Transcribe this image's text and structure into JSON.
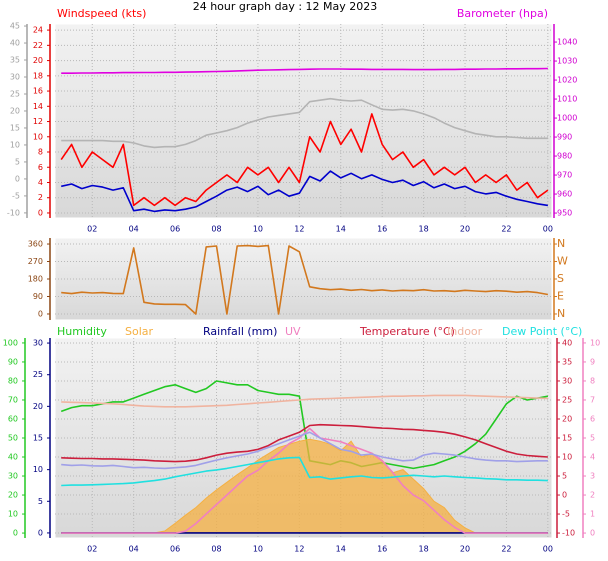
{
  "chart_data": [
    {
      "type": "line",
      "title": "24 hour graph day : 12 May 2023",
      "x": [
        0.5,
        1,
        1.5,
        2,
        2.5,
        3,
        3.5,
        4,
        4.5,
        5,
        5.5,
        6,
        6.5,
        7,
        7.5,
        8,
        8.5,
        9,
        9.5,
        10,
        10.5,
        11,
        11.5,
        12,
        12.5,
        13,
        13.5,
        14,
        14.5,
        15,
        15.5,
        16,
        16.5,
        17,
        17.5,
        18,
        18.5,
        19,
        19.5,
        20,
        20.5,
        21,
        21.5,
        22,
        22.5,
        23,
        23.5,
        24
      ],
      "xlim": [
        0.2,
        24.2
      ],
      "xticks": [
        {
          "value": 2,
          "label": "02"
        },
        {
          "value": 4,
          "label": "04"
        },
        {
          "value": 6,
          "label": "06"
        },
        {
          "value": 8,
          "label": "08"
        },
        10,
        12,
        14,
        16,
        18,
        20,
        22,
        {
          "value": 24,
          "label": "00"
        }
      ],
      "ylim": [
        -0.66,
        24.8
      ],
      "yticks": [
        0,
        2,
        4,
        6,
        8,
        10,
        12,
        14,
        16,
        18,
        20,
        22,
        24
      ],
      "y2lim": [
        947.4,
        1049.5
      ],
      "y2ticks": [
        950,
        960,
        970,
        980,
        990,
        1000,
        1010,
        1020,
        1030,
        1040
      ],
      "y3lim": [
        -11.5,
        45.6
      ],
      "y3ticks": [
        -10,
        -5,
        0,
        5,
        10,
        15,
        20,
        25,
        30,
        35,
        40,
        45
      ],
      "axis_colors": {
        "y": "#e00000",
        "y2": "#d000d0",
        "y3": "#a0a0a0"
      },
      "grid": true,
      "series": [
        {
          "name": "Windspeed (kts)",
          "color": "#ff0000",
          "axis": "y",
          "values": [
            7,
            9,
            6,
            8,
            7,
            6,
            9,
            1,
            2,
            1,
            2,
            1,
            2,
            1.5,
            3,
            4,
            5,
            4,
            6,
            5,
            6,
            4,
            6,
            4,
            10,
            8,
            12,
            9,
            11,
            8,
            13,
            9,
            7,
            8,
            6,
            7,
            5,
            6,
            5,
            6,
            4,
            5,
            4,
            5,
            3,
            4,
            2,
            3
          ]
        },
        {
          "color": "#0000cc",
          "axis": "y",
          "values": [
            3.5,
            3.8,
            3.2,
            3.6,
            3.4,
            3.0,
            3.3,
            0.3,
            0.5,
            0.2,
            0.4,
            0.3,
            0.5,
            0.8,
            1.5,
            2.2,
            3.0,
            3.4,
            2.8,
            3.5,
            2.4,
            3.0,
            2.2,
            2.6,
            4.8,
            4.2,
            5.5,
            4.6,
            5.2,
            4.5,
            5.0,
            4.4,
            4.0,
            4.3,
            3.6,
            4.1,
            3.3,
            3.8,
            3.2,
            3.5,
            2.8,
            2.5,
            2.7,
            2.2,
            1.8,
            1.5,
            1.2,
            1.0
          ]
        },
        {
          "color": "#b4b4b4",
          "axis": "y",
          "values": [
            9.5,
            9.5,
            9.5,
            9.5,
            9.5,
            9.4,
            9.4,
            9.2,
            8.8,
            8.6,
            8.7,
            8.7,
            9.0,
            9.5,
            10.2,
            10.5,
            10.8,
            11.2,
            11.8,
            12.2,
            12.6,
            12.8,
            13.0,
            13.2,
            14.6,
            14.8,
            15.0,
            14.8,
            14.7,
            14.8,
            14.2,
            13.6,
            13.5,
            13.6,
            13.4,
            13.0,
            12.5,
            11.8,
            11.2,
            10.8,
            10.4,
            10.2,
            10.0,
            10.0,
            9.9,
            9.8,
            9.8,
            9.8
          ]
        },
        {
          "name": "Barometer (hpa)",
          "color": "#e000e0",
          "axis": "y2",
          "values": [
            1023.6,
            1023.6,
            1023.7,
            1023.7,
            1023.8,
            1023.8,
            1023.9,
            1023.9,
            1024.0,
            1024.0,
            1024.1,
            1024.1,
            1024.2,
            1024.3,
            1024.4,
            1024.5,
            1024.6,
            1024.8,
            1025.0,
            1025.2,
            1025.3,
            1025.4,
            1025.5,
            1025.6,
            1025.7,
            1025.8,
            1025.8,
            1025.8,
            1025.7,
            1025.7,
            1025.6,
            1025.6,
            1025.6,
            1025.6,
            1025.5,
            1025.5,
            1025.5,
            1025.6,
            1025.6,
            1025.7,
            1025.7,
            1025.8,
            1025.8,
            1025.9,
            1025.9,
            1026.0,
            1026.0,
            1026.1
          ]
        }
      ]
    },
    {
      "type": "line",
      "x": [
        0.5,
        1,
        1.5,
        2,
        2.5,
        3,
        3.5,
        4,
        4.5,
        5,
        5.5,
        6,
        6.5,
        7,
        7.5,
        8,
        8.5,
        9,
        9.5,
        10,
        10.5,
        11,
        11.5,
        12,
        12.5,
        13,
        13.5,
        14,
        14.5,
        15,
        15.5,
        16,
        16.5,
        17,
        17.5,
        18,
        18.5,
        19,
        19.5,
        20,
        20.5,
        21,
        21.5,
        22,
        22.5,
        23,
        23.5,
        24
      ],
      "xlim": [
        0.2,
        24.2
      ],
      "ylim": [
        -31,
        391
      ],
      "yticks": [
        0,
        90,
        180,
        270,
        360
      ],
      "y2lim": [
        -31,
        391
      ],
      "y2ticks": [
        {
          "value": 0,
          "label": "N"
        },
        {
          "value": 90,
          "label": "E"
        },
        {
          "value": 180,
          "label": "S"
        },
        {
          "value": 270,
          "label": "W"
        },
        {
          "value": 360,
          "label": "N"
        }
      ],
      "axis_colors": {
        "y": "#8b4513",
        "y2": "#d2781e"
      },
      "grid": true,
      "series": [
        {
          "color": "#d2781e",
          "axis": "y",
          "values": [
            110,
            105,
            112,
            108,
            110,
            106,
            105,
            340,
            60,
            52,
            50,
            50,
            48,
            0,
            345,
            350,
            0,
            350,
            352,
            348,
            352,
            0,
            350,
            320,
            140,
            130,
            125,
            128,
            122,
            126,
            120,
            124,
            118,
            122,
            120,
            125,
            118,
            120,
            116,
            122,
            118,
            115,
            120,
            117,
            112,
            115,
            110,
            100
          ]
        }
      ]
    },
    {
      "type": "line",
      "x": [
        0.5,
        1,
        1.5,
        2,
        2.5,
        3,
        3.5,
        4,
        4.5,
        5,
        5.5,
        6,
        6.5,
        7,
        7.5,
        8,
        8.5,
        9,
        9.5,
        10,
        10.5,
        11,
        11.5,
        12,
        12.5,
        13,
        13.5,
        14,
        14.5,
        15,
        15.5,
        16,
        16.5,
        17,
        17.5,
        18,
        18.5,
        19,
        19.5,
        20,
        20.5,
        21,
        21.5,
        22,
        22.5,
        23,
        23.5,
        24
      ],
      "xlim": [
        0.2,
        24.2
      ],
      "xticks": [
        {
          "value": 2,
          "label": "02"
        },
        {
          "value": 4,
          "label": "04"
        },
        {
          "value": 6,
          "label": "06"
        },
        {
          "value": 8,
          "label": "08"
        },
        10,
        12,
        14,
        16,
        18,
        20,
        22,
        {
          "value": 24,
          "label": "00"
        }
      ],
      "ylim": [
        -2.6,
        102.6
      ],
      "yticks": [
        0,
        10,
        20,
        30,
        40,
        50,
        60,
        70,
        80,
        90,
        100
      ],
      "y2lim": [
        -11.3,
        41.3
      ],
      "y2ticks": [
        -10,
        -5,
        0,
        5,
        10,
        15,
        20,
        25,
        30,
        35,
        40
      ],
      "y3lim": [
        -0.8,
        30.8
      ],
      "y3ticks": [
        0,
        5,
        10,
        15,
        20,
        25,
        30
      ],
      "y4lim": [
        -0.26,
        10.26
      ],
      "y4ticks": [
        0,
        1,
        2,
        3,
        4,
        5,
        6,
        7,
        8,
        9,
        10
      ],
      "axis_colors": {
        "y": "#22c822",
        "y2": "#cc1e3c",
        "y3": "#000080",
        "y4": "#f080c0"
      },
      "grid": true,
      "series": [
        {
          "name": "Humidity",
          "color": "#22c822",
          "axis": "y",
          "values": [
            64,
            66,
            67,
            67,
            68,
            69,
            69,
            71,
            73,
            75,
            77,
            78,
            76,
            74,
            76,
            80,
            79,
            78,
            78,
            75,
            74,
            73,
            73,
            72,
            38,
            37,
            36,
            38,
            37,
            35,
            36,
            37,
            36,
            35,
            34,
            35,
            36,
            38,
            40,
            43,
            47,
            52,
            60,
            68,
            72,
            70,
            71,
            72
          ]
        },
        {
          "name": "Solar",
          "color": "#f5b042",
          "axis": "y3",
          "fill": true,
          "values": [
            0,
            0,
            0,
            0,
            0,
            0,
            0,
            0,
            0,
            0,
            0.3,
            1.5,
            2.8,
            4.0,
            5.5,
            6.8,
            8.0,
            9.2,
            10.3,
            11.5,
            12.5,
            13.5,
            14.0,
            14.5,
            14.8,
            14.5,
            14.0,
            13.0,
            14.5,
            12.0,
            12.5,
            11.5,
            9.5,
            10.0,
            8.5,
            7.0,
            5.0,
            4.0,
            2.0,
            0.8,
            0,
            0,
            0,
            0,
            0,
            0,
            0,
            0
          ]
        },
        {
          "name": "Rainfall (mm)",
          "color": "#000080",
          "axis": "y3",
          "values": [
            0,
            0,
            0,
            0,
            0,
            0,
            0,
            0,
            0,
            0,
            0,
            0,
            0,
            0,
            0,
            0,
            0,
            0,
            0,
            0,
            0,
            0,
            0,
            0,
            0,
            0,
            0,
            0,
            0,
            0,
            0,
            0,
            0,
            0,
            0,
            0,
            0,
            0,
            0,
            0,
            0,
            0,
            0,
            0,
            0,
            0,
            0,
            0
          ]
        },
        {
          "name": "UV",
          "color": "#f080c0",
          "axis": "y4",
          "values": [
            0,
            0,
            0,
            0,
            0,
            0,
            0,
            0,
            0,
            0,
            0,
            0,
            0.1,
            0.5,
            1.0,
            1.5,
            2.0,
            2.5,
            3.0,
            3.3,
            3.8,
            4.2,
            4.7,
            5.0,
            5.5,
            5.0,
            4.9,
            4.8,
            4.6,
            4.4,
            4.2,
            3.8,
            3.2,
            2.5,
            2.0,
            1.7,
            1.2,
            0.7,
            0.3,
            0,
            0,
            0,
            0,
            0,
            0,
            0,
            0,
            0
          ]
        },
        {
          "name": "Temperature (°C)",
          "color": "#cc1e3c",
          "axis": "y2",
          "values": [
            9.8,
            9.7,
            9.6,
            9.6,
            9.5,
            9.5,
            9.4,
            9.3,
            9.2,
            9.0,
            8.9,
            8.8,
            8.9,
            9.2,
            9.8,
            10.5,
            11.0,
            11.3,
            11.5,
            12.0,
            13.0,
            14.5,
            15.5,
            16.5,
            18.3,
            18.5,
            18.4,
            18.3,
            18.2,
            18.0,
            17.8,
            17.6,
            17.5,
            17.3,
            17.2,
            17.0,
            16.8,
            16.5,
            16.0,
            15.3,
            14.5,
            13.5,
            12.5,
            11.5,
            10.8,
            10.4,
            10.2,
            10.0
          ]
        },
        {
          "name": "Indoor",
          "color": "#f0b4a0",
          "axis": "y2",
          "values": [
            24.5,
            24.4,
            24.3,
            24.2,
            24.1,
            24.0,
            23.8,
            23.6,
            23.4,
            23.3,
            23.2,
            23.2,
            23.2,
            23.3,
            23.4,
            23.5,
            23.6,
            23.8,
            24.0,
            24.2,
            24.4,
            24.6,
            24.8,
            25.0,
            25.2,
            25.3,
            25.4,
            25.5,
            25.6,
            25.7,
            25.8,
            25.9,
            26.0,
            26.0,
            26.1,
            26.1,
            26.2,
            26.2,
            26.2,
            26.2,
            26.1,
            26.0,
            25.9,
            25.8,
            25.7,
            25.6,
            25.5,
            25.4
          ]
        },
        {
          "name": "Dew Point (°C)",
          "color": "#20e0e0",
          "axis": "y2",
          "values": [
            2.5,
            2.6,
            2.6,
            2.7,
            2.8,
            2.9,
            3.0,
            3.2,
            3.5,
            3.8,
            4.2,
            4.8,
            5.3,
            5.8,
            6.3,
            6.6,
            7.0,
            7.5,
            8.0,
            8.5,
            9.0,
            9.5,
            9.8,
            9.9,
            4.6,
            4.8,
            4.2,
            4.5,
            4.8,
            5.0,
            4.6,
            4.5,
            4.7,
            5.0,
            5.2,
            5.0,
            4.8,
            5.0,
            4.8,
            4.6,
            4.5,
            4.3,
            4.2,
            4.0,
            4.0,
            3.9,
            3.9,
            3.8
          ]
        },
        {
          "color": "#a0a0e8",
          "axis": "y2",
          "values": [
            8.0,
            7.8,
            7.9,
            7.7,
            7.6,
            7.8,
            7.5,
            7.2,
            7.3,
            7.1,
            7.0,
            7.2,
            7.4,
            7.8,
            8.5,
            9.2,
            9.8,
            10.3,
            10.8,
            11.5,
            12.5,
            13.5,
            14.5,
            15.5,
            16.5,
            15.0,
            13.5,
            12.0,
            11.5,
            10.5,
            10.8,
            10.0,
            9.5,
            9.0,
            9.2,
            10.5,
            11.0,
            10.8,
            10.5,
            10.0,
            9.5,
            9.2,
            9.0,
            9.0,
            8.8,
            8.9,
            9.0,
            9.0
          ]
        }
      ]
    }
  ]
}
